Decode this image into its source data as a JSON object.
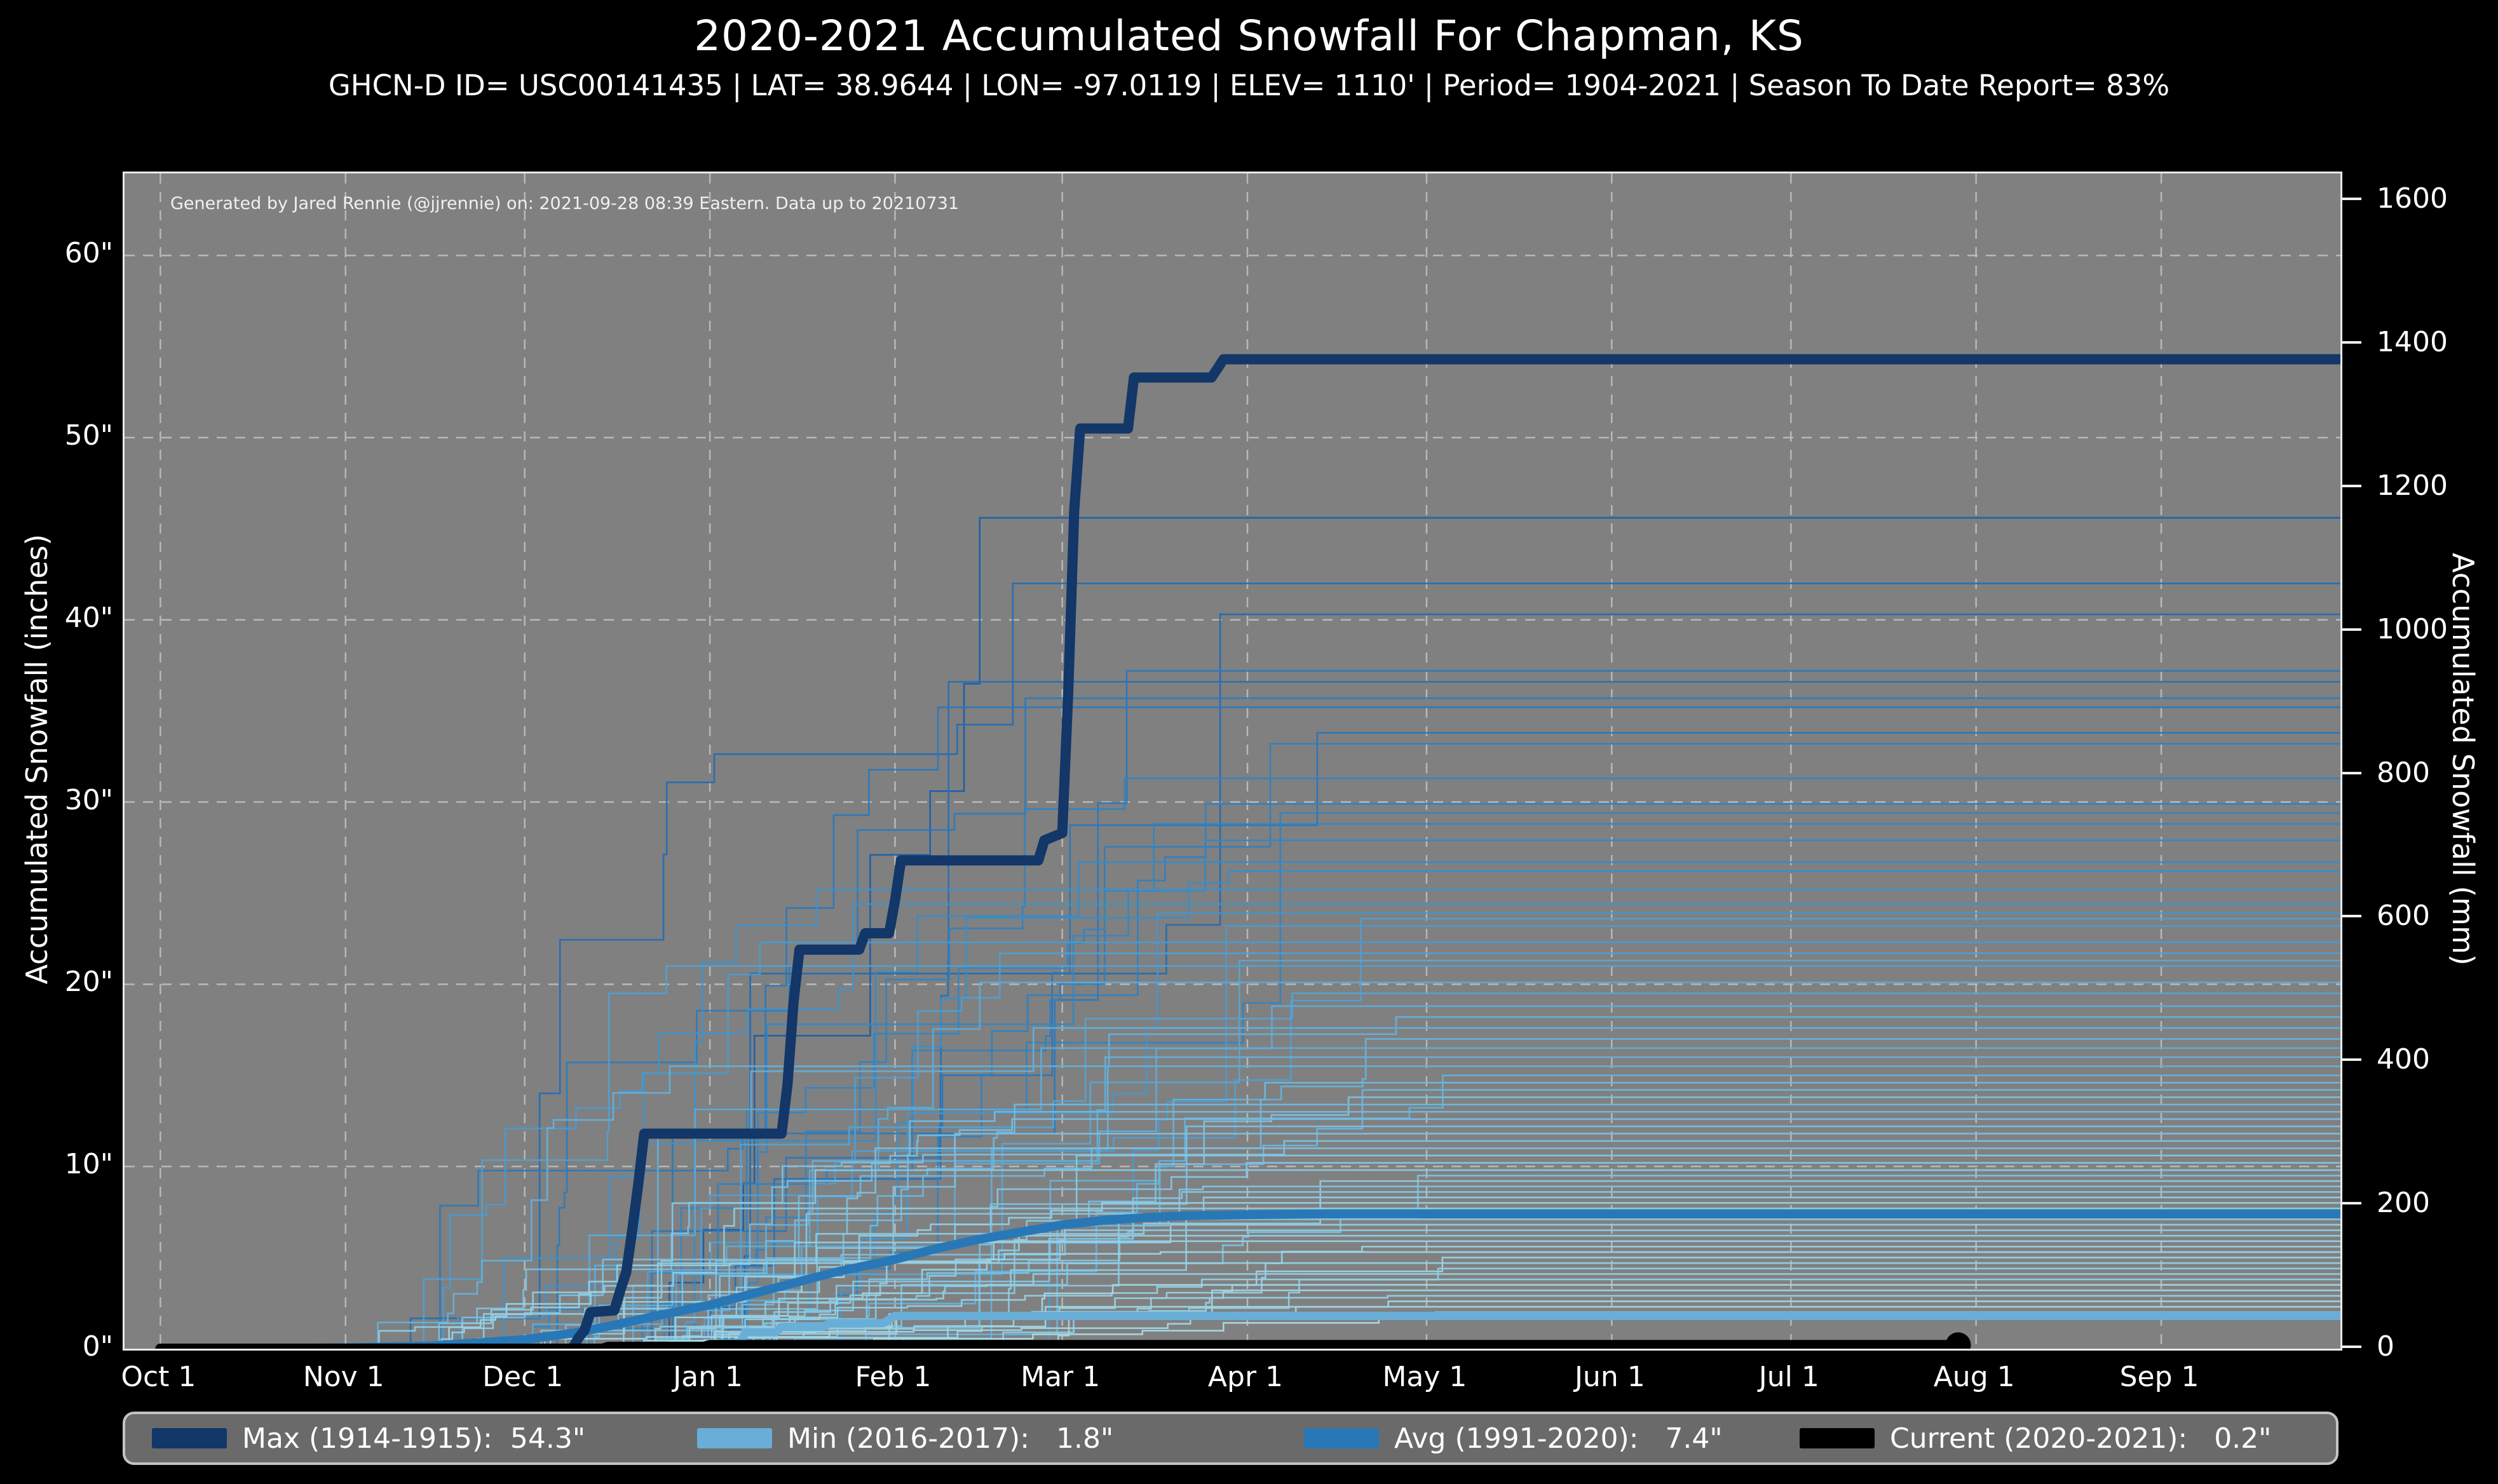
{
  "title": "2020-2021 Accumulated Snowfall For Chapman, KS",
  "subtitle": "GHCN-D ID= USC00141435 | LAT= 38.9644 | LON= -97.0119 | ELEV= 1110' | Period= 1904-2021 | Season To Date Report= 83%",
  "attribution": "Generated by Jared Rennie (@jjrennie) on: 2021-09-28 08:39 Eastern. Data up to 20210731",
  "colors": {
    "figure_bg": "#000000",
    "plot_bg": "#808080",
    "grid": "#c2c2c2",
    "text": "#ffffff",
    "max": "#123768",
    "min": "#69aed6",
    "avg": "#2878b8",
    "current": "#000000",
    "legend_bg": "#6a6a6a",
    "legend_border": "#c4c4c4"
  },
  "legend": {
    "items": [
      {
        "key": "max",
        "label": "Max (1914-1915):  54.3\""
      },
      {
        "key": "min",
        "label": "Min (2016-2017):   1.8\""
      },
      {
        "key": "avg",
        "label": "Avg (1991-2020):   7.4\""
      },
      {
        "key": "current",
        "label": "Current (2020-2021):   0.2\""
      }
    ],
    "item_offsets": [
      42,
      900,
      1855,
      2635
    ]
  },
  "chart_data": {
    "type": "line",
    "title": "2020-2021 Accumulated Snowfall For Chapman, KS",
    "xlabel": "",
    "ylabel_left": "Accumulated Snowfall (inches)",
    "ylabel_right": "Accumulated Snowfall (mm)",
    "x_domain_days": [
      -6,
      365
    ],
    "y_domain_inches": [
      0,
      64.5
    ],
    "grid": "dashed, month verticals and 10-inch horizontals",
    "legend_position": "bottom bar",
    "x_ticks": [
      {
        "label": "Oct 1",
        "day": 0
      },
      {
        "label": "Nov 1",
        "day": 31
      },
      {
        "label": "Dec 1",
        "day": 61
      },
      {
        "label": "Jan 1",
        "day": 92
      },
      {
        "label": "Feb 1",
        "day": 123
      },
      {
        "label": "Mar 1",
        "day": 151
      },
      {
        "label": "Apr 1",
        "day": 182
      },
      {
        "label": "May 1",
        "day": 212
      },
      {
        "label": "Jun 1",
        "day": 243
      },
      {
        "label": "Jul 1",
        "day": 273
      },
      {
        "label": "Aug 1",
        "day": 304
      },
      {
        "label": "Sep 1",
        "day": 335
      }
    ],
    "y_ticks_left": [
      {
        "label": "0\"",
        "value": 0
      },
      {
        "label": "10\"",
        "value": 10
      },
      {
        "label": "20\"",
        "value": 20
      },
      {
        "label": "30\"",
        "value": 30
      },
      {
        "label": "40\"",
        "value": 40
      },
      {
        "label": "50\"",
        "value": 50
      },
      {
        "label": "60\"",
        "value": 60
      }
    ],
    "y_ticks_right": [
      {
        "label": "0",
        "mm": 0
      },
      {
        "label": "200",
        "mm": 200
      },
      {
        "label": "400",
        "mm": 400
      },
      {
        "label": "600",
        "mm": 600
      },
      {
        "label": "800",
        "mm": 800
      },
      {
        "label": "1000",
        "mm": 1000
      },
      {
        "label": "1200",
        "mm": 1200
      },
      {
        "label": "1400",
        "mm": 1400
      },
      {
        "label": "1600",
        "mm": 1600
      }
    ],
    "grid_y_inches": [
      10,
      20,
      30,
      40,
      50,
      60
    ],
    "series": [
      {
        "name": "Max (1914-1915)",
        "total_inches": 54.3,
        "color": "#123768",
        "width": 16,
        "interp": "linear",
        "points": [
          [
            0,
            0
          ],
          [
            69,
            0
          ],
          [
            70,
            0.6
          ],
          [
            71,
            1.0
          ],
          [
            72,
            2.0
          ],
          [
            76,
            2.1
          ],
          [
            77,
            3.2
          ],
          [
            78,
            4.2
          ],
          [
            79,
            6.5
          ],
          [
            80,
            9.0
          ],
          [
            81,
            11.8
          ],
          [
            104,
            11.8
          ],
          [
            105,
            14.5
          ],
          [
            106,
            19.0
          ],
          [
            107,
            21.9
          ],
          [
            117,
            21.9
          ],
          [
            118,
            22.8
          ],
          [
            122,
            22.8
          ],
          [
            123,
            24.6
          ],
          [
            124,
            26.8
          ],
          [
            147,
            26.8
          ],
          [
            148,
            27.9
          ],
          [
            151,
            28.3
          ],
          [
            152,
            36.0
          ],
          [
            153,
            46.0
          ],
          [
            154,
            50.5
          ],
          [
            162,
            50.5
          ],
          [
            163,
            53.3
          ],
          [
            176,
            53.3
          ],
          [
            178,
            54.3
          ],
          [
            365,
            54.3
          ]
        ]
      },
      {
        "name": "Min (2016-2017)",
        "total_inches": 1.8,
        "color": "#69aed6",
        "width": 13,
        "interp": "linear",
        "points": [
          [
            0,
            0
          ],
          [
            93,
            0
          ],
          [
            94,
            0.3
          ],
          [
            97,
            0.3
          ],
          [
            98,
            0.9
          ],
          [
            103,
            0.9
          ],
          [
            104,
            1.2
          ],
          [
            111,
            1.2
          ],
          [
            112,
            1.4
          ],
          [
            121,
            1.4
          ],
          [
            123,
            1.8
          ],
          [
            365,
            1.8
          ]
        ]
      },
      {
        "name": "Avg (1991-2020)",
        "total_inches": 7.4,
        "color": "#2878b8",
        "width": 14,
        "interp": "linear",
        "points": [
          [
            0,
            0
          ],
          [
            31,
            0.05
          ],
          [
            45,
            0.15
          ],
          [
            61,
            0.5
          ],
          [
            70,
            0.9
          ],
          [
            76,
            1.3
          ],
          [
            83,
            1.8
          ],
          [
            92,
            2.4
          ],
          [
            99,
            3.0
          ],
          [
            106,
            3.6
          ],
          [
            113,
            4.2
          ],
          [
            123,
            4.9
          ],
          [
            130,
            5.5
          ],
          [
            137,
            6.0
          ],
          [
            144,
            6.4
          ],
          [
            151,
            6.8
          ],
          [
            158,
            7.05
          ],
          [
            165,
            7.2
          ],
          [
            172,
            7.3
          ],
          [
            182,
            7.35
          ],
          [
            195,
            7.4
          ],
          [
            365,
            7.4
          ]
        ]
      },
      {
        "name": "Current (2020-2021)",
        "total_inches": 0.2,
        "color": "#000000",
        "width": 16,
        "interp": "linear",
        "end_marker_day": 301,
        "end_marker_radius": 20,
        "points": [
          [
            0,
            0
          ],
          [
            74,
            0
          ],
          [
            75,
            0.1
          ],
          [
            91,
            0.1
          ],
          [
            92,
            0.2
          ],
          [
            301,
            0.2
          ]
        ]
      }
    ],
    "ensemble": {
      "description": "all other seasons 1904-2021, thin step lines shaded light-to-dark blue by season total",
      "line_width": 2.6,
      "color_stops": [
        [
          0.0,
          "#aadbe6"
        ],
        [
          0.33,
          "#6db8de"
        ],
        [
          0.62,
          "#3487c4"
        ],
        [
          1.0,
          "#1b5fa8"
        ]
      ],
      "final_totals_inches": [
        45.6,
        42.0,
        40.3,
        37.2,
        36.6,
        35.7,
        35.2,
        33.8,
        33.2,
        31.3,
        29.9,
        29.4,
        28.8,
        27.9,
        26.7,
        26.2,
        25.2,
        24.4,
        23.9,
        23.6,
        23.2,
        22.3,
        21.7,
        21.3,
        21.0,
        20.1,
        19.5,
        18.8,
        18.2,
        17.6,
        17.0,
        16.5,
        16.0,
        15.5,
        15.0,
        14.6,
        14.2,
        13.8,
        13.4,
        13.0,
        12.6,
        12.2,
        11.8,
        11.4,
        11.0,
        10.6,
        10.2,
        9.8,
        9.5,
        9.2,
        8.9,
        8.6,
        8.3,
        8.0,
        7.7,
        7.4,
        7.1,
        6.8,
        6.5,
        6.2,
        5.9,
        5.6,
        5.3,
        5.0,
        4.7,
        4.4,
        4.1,
        3.8,
        3.5,
        3.2,
        2.9,
        2.6,
        2.3,
        2.0
      ]
    }
  }
}
